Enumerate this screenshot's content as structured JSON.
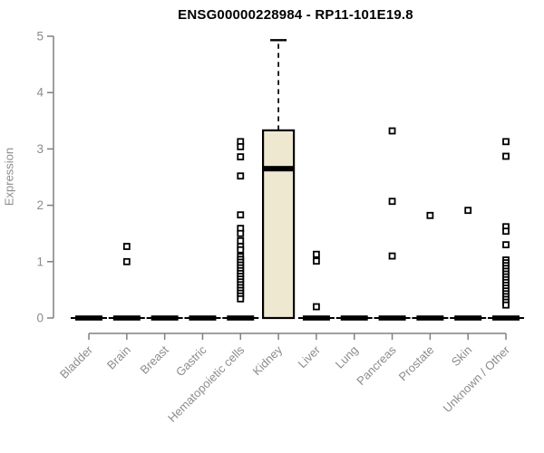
{
  "chart_data": {
    "type": "boxplot",
    "title": "ENSG00000228984 - RP11-101E19.8",
    "ylabel": "Expression",
    "xlabel": "",
    "ylim": [
      0,
      5
    ],
    "yticks": [
      0,
      1,
      2,
      3,
      4,
      5
    ],
    "grid": false,
    "legend": "none",
    "colors": {
      "box_fill": "#ede8cf",
      "box_stroke": "#000000",
      "median": "#000000",
      "outlier_stroke": "#000000",
      "outlier_fill": "#ffffff",
      "axis": "#808080",
      "tick_text": "#8c8c8c",
      "title_text": "#000000"
    },
    "categories": [
      "Bladder",
      "Brain",
      "Breast",
      "Gastric",
      "Hematopoietic cells",
      "Kidney",
      "Liver",
      "Lung",
      "Pancreas",
      "Prostate",
      "Skin",
      "Unknown / Other"
    ],
    "boxes": [
      {
        "category": "Bladder",
        "q1": 0,
        "median": 0,
        "q3": 0,
        "whisker_low": 0,
        "whisker_high": 0,
        "outliers": []
      },
      {
        "category": "Brain",
        "q1": 0,
        "median": 0,
        "q3": 0,
        "whisker_low": 0,
        "whisker_high": 0,
        "outliers": [
          1.27,
          1.0
        ]
      },
      {
        "category": "Breast",
        "q1": 0,
        "median": 0,
        "q3": 0,
        "whisker_low": 0,
        "whisker_high": 0,
        "outliers": []
      },
      {
        "category": "Gastric",
        "q1": 0,
        "median": 0,
        "q3": 0,
        "whisker_low": 0,
        "whisker_high": 0,
        "outliers": []
      },
      {
        "category": "Hematopoietic cells",
        "q1": 0,
        "median": 0,
        "q3": 0,
        "whisker_low": 0,
        "whisker_high": 0,
        "outliers": [
          3.13,
          3.04,
          2.86,
          2.52,
          1.83,
          1.59,
          1.5,
          1.37,
          1.27,
          1.21,
          1.09,
          1.04,
          0.99,
          0.94,
          0.89,
          0.84,
          0.79,
          0.74,
          0.69,
          0.64,
          0.59,
          0.54,
          0.49,
          0.44,
          0.39,
          0.34
        ]
      },
      {
        "category": "Kidney",
        "q1": 0,
        "median": 2.65,
        "q3": 3.33,
        "whisker_low": 0,
        "whisker_high": 4.93,
        "outliers": []
      },
      {
        "category": "Liver",
        "q1": 0,
        "median": 0,
        "q3": 0,
        "whisker_low": 0,
        "whisker_high": 0,
        "outliers": [
          1.13,
          1.01,
          0.2
        ]
      },
      {
        "category": "Lung",
        "q1": 0,
        "median": 0,
        "q3": 0,
        "whisker_low": 0,
        "whisker_high": 0,
        "outliers": []
      },
      {
        "category": "Pancreas",
        "q1": 0,
        "median": 0,
        "q3": 0,
        "whisker_low": 0,
        "whisker_high": 0,
        "outliers": [
          3.32,
          2.07,
          1.1
        ]
      },
      {
        "category": "Prostate",
        "q1": 0,
        "median": 0,
        "q3": 0,
        "whisker_low": 0,
        "whisker_high": 0,
        "outliers": [
          1.82
        ]
      },
      {
        "category": "Skin",
        "q1": 0,
        "median": 0,
        "q3": 0,
        "whisker_low": 0,
        "whisker_high": 0,
        "outliers": [
          1.91
        ]
      },
      {
        "category": "Unknown / Other",
        "q1": 0,
        "median": 0,
        "q3": 0,
        "whisker_low": 0,
        "whisker_high": 0,
        "outliers": [
          3.13,
          2.87,
          1.62,
          1.54,
          1.3,
          1.03,
          0.98,
          0.93,
          0.88,
          0.83,
          0.78,
          0.73,
          0.68,
          0.63,
          0.58,
          0.53,
          0.48,
          0.43,
          0.38,
          0.33,
          0.28,
          0.23
        ]
      }
    ]
  }
}
